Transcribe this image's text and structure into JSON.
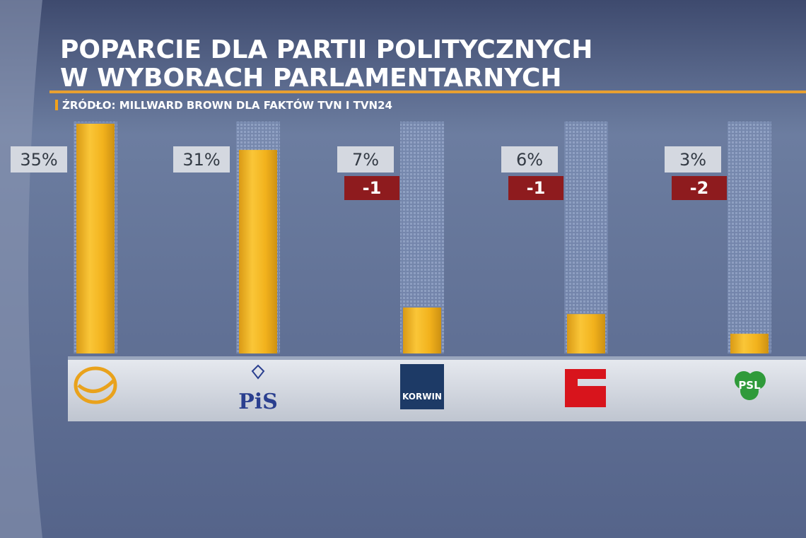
{
  "chart_data": {
    "type": "bar",
    "title": [
      "POPARCIE DLA PARTII POLITYCZNYCH",
      "W WYBORACH PARLAMENTARNYCH"
    ],
    "subtitle": "ŹRÓDŁO: MILLWARD BROWN DLA FAKTÓW TVN I TVN24",
    "categories": [
      null,
      "PiS",
      "KORWIN",
      null,
      "PSL"
    ],
    "values": [
      35,
      31,
      7,
      6,
      3
    ],
    "value_labels": [
      "35%",
      "31%",
      "7%",
      "6%",
      "3%"
    ],
    "changes": [
      null,
      null,
      -1,
      -1,
      -2
    ],
    "color": "#f2b21c",
    "change_color": "#8e1b1e",
    "ylim": [
      0,
      35
    ]
  }
}
